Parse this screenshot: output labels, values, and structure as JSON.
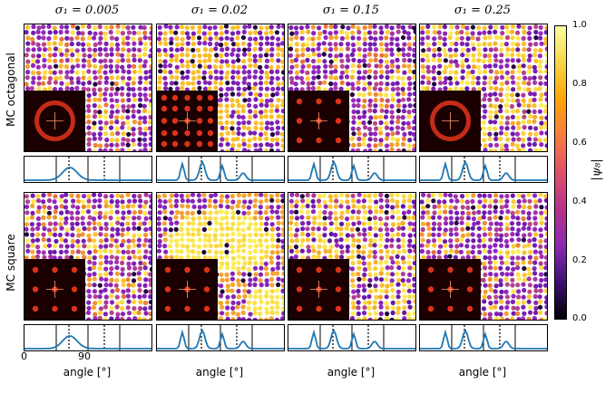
{
  "columns": [
    "σ₁ = 0.005",
    "σ₁ = 0.02",
    "σ₁ = 0.15",
    "σ₁ = 0.25"
  ],
  "rows": [
    "MC octagonal",
    "MC square"
  ],
  "colorbar": {
    "label": "|ψ₈|",
    "ticks": [
      "1.0",
      "0.8",
      "0.6",
      "0.4",
      "0.2",
      "0.0"
    ]
  },
  "angle_axis": {
    "label": "angle [°]",
    "ticks": [
      "0",
      "90"
    ]
  },
  "colors": {
    "line": "#1f77b4",
    "low": "#2a0a3a",
    "mid": "#8c29b3",
    "high": "#f6d746",
    "fft_bg": "#1a0000",
    "fft_peak": "#ff3b1f"
  },
  "chart_data": {
    "type": "image-grid",
    "colorbar_range": [
      0,
      1
    ],
    "colormap": "plasma",
    "panels": [
      {
        "row": "MC octagonal",
        "col": "σ₁ = 0.005",
        "dominant": "mixed",
        "fft": "ring"
      },
      {
        "row": "MC octagonal",
        "col": "σ₁ = 0.02",
        "dominant": "ring-pattern",
        "fft": "square-grid"
      },
      {
        "row": "MC octagonal",
        "col": "σ₁ = 0.15",
        "dominant": "mixed",
        "fft": "square"
      },
      {
        "row": "MC octagonal",
        "col": "σ₁ = 0.25",
        "dominant": "mixed-high",
        "fft": "ring"
      },
      {
        "row": "MC square",
        "col": "σ₁ = 0.005",
        "dominant": "mixed",
        "fft": "square"
      },
      {
        "row": "MC square",
        "col": "σ₁ = 0.02",
        "dominant": "high-domains",
        "fft": "square"
      },
      {
        "row": "MC square",
        "col": "σ₁ = 0.15",
        "dominant": "mixed-high",
        "fft": "square"
      },
      {
        "row": "MC square",
        "col": "σ₁ = 0.25",
        "dominant": "mixed",
        "fft": "square"
      }
    ]
  }
}
